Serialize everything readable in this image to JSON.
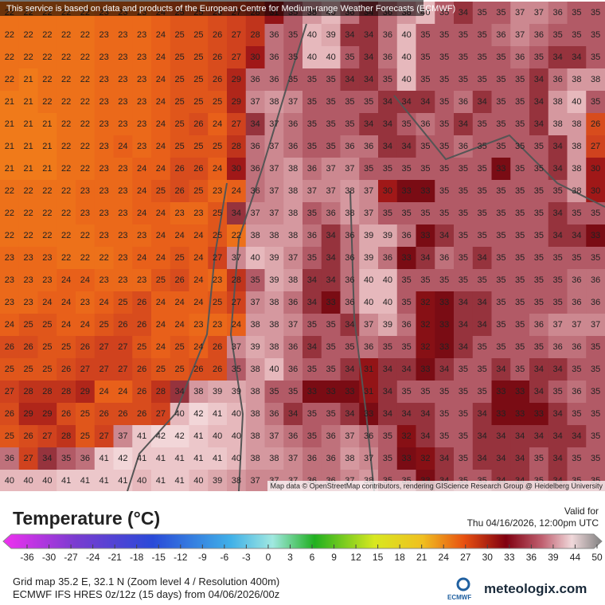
{
  "header": {
    "notice": "This service is based on data and products of the European Centre for Medium-range Weather Forecasts (ECMWF)"
  },
  "map": {
    "attribution": "Map data © OpenStreetMap contributors, rendering GIScience Research Group @ Heidelberg University",
    "grid": [
      [
        22,
        22,
        22,
        22,
        22,
        23,
        23,
        23,
        24,
        25,
        25,
        26,
        27,
        28,
        31,
        35,
        38,
        40,
        36,
        34,
        36,
        38,
        40,
        35,
        34,
        35,
        35,
        37,
        37,
        36,
        35,
        35
      ],
      [
        22,
        22,
        22,
        22,
        22,
        23,
        23,
        23,
        24,
        25,
        25,
        26,
        27,
        28,
        36,
        35,
        40,
        39,
        34,
        34,
        36,
        40,
        35,
        35,
        35,
        35,
        36,
        37,
        36,
        35,
        35,
        35
      ],
      [
        22,
        22,
        22,
        22,
        22,
        23,
        23,
        23,
        24,
        25,
        25,
        26,
        27,
        30,
        36,
        35,
        40,
        40,
        35,
        34,
        36,
        40,
        35,
        35,
        35,
        35,
        35,
        36,
        35,
        34,
        34,
        35
      ],
      [
        22,
        21,
        22,
        22,
        22,
        23,
        23,
        23,
        24,
        25,
        25,
        26,
        29,
        36,
        36,
        35,
        35,
        35,
        34,
        34,
        35,
        40,
        35,
        35,
        35,
        35,
        35,
        35,
        34,
        36,
        38,
        38
      ],
      [
        21,
        21,
        22,
        22,
        22,
        23,
        23,
        23,
        24,
        25,
        25,
        25,
        29,
        37,
        38,
        37,
        35,
        35,
        35,
        35,
        34,
        34,
        34,
        35,
        36,
        34,
        35,
        35,
        34,
        38,
        40,
        35
      ],
      [
        21,
        21,
        21,
        22,
        22,
        23,
        23,
        23,
        24,
        25,
        26,
        24,
        27,
        34,
        37,
        36,
        35,
        35,
        35,
        34,
        34,
        35,
        36,
        35,
        34,
        35,
        35,
        35,
        34,
        38,
        38,
        26
      ],
      [
        21,
        21,
        21,
        22,
        22,
        23,
        24,
        23,
        24,
        25,
        25,
        25,
        28,
        36,
        37,
        36,
        35,
        35,
        36,
        36,
        34,
        34,
        35,
        35,
        36,
        35,
        35,
        35,
        35,
        34,
        38,
        27
      ],
      [
        21,
        21,
        21,
        22,
        22,
        23,
        23,
        24,
        24,
        26,
        26,
        24,
        30,
        36,
        37,
        38,
        36,
        37,
        37,
        35,
        35,
        35,
        35,
        35,
        35,
        35,
        33,
        35,
        35,
        34,
        38,
        30
      ],
      [
        22,
        22,
        22,
        22,
        23,
        23,
        23,
        24,
        25,
        26,
        25,
        23,
        24,
        36,
        37,
        38,
        37,
        37,
        38,
        37,
        30,
        33,
        33,
        35,
        35,
        35,
        35,
        35,
        35,
        35,
        38,
        30
      ],
      [
        22,
        22,
        22,
        22,
        23,
        23,
        23,
        24,
        24,
        23,
        23,
        25,
        34,
        37,
        37,
        38,
        35,
        36,
        38,
        37,
        35,
        35,
        35,
        35,
        35,
        35,
        35,
        35,
        35,
        34,
        35,
        35
      ],
      [
        22,
        22,
        22,
        22,
        22,
        23,
        23,
        23,
        24,
        24,
        24,
        25,
        22,
        38,
        38,
        38,
        36,
        34,
        36,
        39,
        39,
        36,
        33,
        34,
        35,
        35,
        35,
        35,
        35,
        34,
        34,
        33
      ],
      [
        23,
        23,
        23,
        22,
        22,
        22,
        23,
        24,
        24,
        25,
        24,
        27,
        37,
        40,
        39,
        37,
        35,
        34,
        36,
        39,
        36,
        33,
        34,
        36,
        35,
        34,
        35,
        35,
        35,
        35,
        35,
        35
      ],
      [
        23,
        23,
        23,
        24,
        24,
        23,
        23,
        23,
        25,
        26,
        24,
        23,
        28,
        35,
        39,
        38,
        34,
        34,
        36,
        40,
        40,
        35,
        35,
        35,
        35,
        35,
        35,
        35,
        35,
        35,
        36,
        36
      ],
      [
        23,
        23,
        24,
        24,
        23,
        24,
        25,
        26,
        24,
        24,
        24,
        25,
        27,
        37,
        38,
        36,
        34,
        33,
        36,
        40,
        40,
        35,
        32,
        33,
        34,
        34,
        35,
        35,
        35,
        35,
        36,
        36
      ],
      [
        24,
        25,
        25,
        24,
        24,
        25,
        26,
        26,
        24,
        24,
        23,
        23,
        24,
        38,
        38,
        37,
        35,
        35,
        34,
        37,
        39,
        36,
        32,
        33,
        34,
        34,
        35,
        35,
        36,
        37,
        37,
        37
      ],
      [
        26,
        26,
        25,
        25,
        26,
        27,
        27,
        25,
        24,
        25,
        24,
        26,
        37,
        39,
        38,
        36,
        34,
        35,
        35,
        36,
        35,
        35,
        32,
        33,
        34,
        35,
        35,
        35,
        35,
        36,
        36,
        35
      ],
      [
        25,
        25,
        25,
        26,
        27,
        27,
        27,
        26,
        25,
        25,
        26,
        26,
        35,
        38,
        40,
        36,
        35,
        35,
        34,
        31,
        34,
        34,
        33,
        34,
        35,
        35,
        34,
        35,
        34,
        34,
        35,
        35
      ],
      [
        27,
        28,
        28,
        28,
        29,
        24,
        24,
        26,
        28,
        34,
        38,
        39,
        39,
        38,
        35,
        35,
        33,
        33,
        33,
        31,
        34,
        35,
        35,
        35,
        35,
        35,
        33,
        33,
        34,
        35,
        36,
        35
      ],
      [
        26,
        29,
        29,
        26,
        25,
        26,
        26,
        26,
        27,
        40,
        42,
        41,
        40,
        38,
        36,
        34,
        35,
        35,
        34,
        33,
        34,
        34,
        34,
        35,
        35,
        34,
        33,
        33,
        33,
        34,
        35,
        35
      ],
      [
        25,
        26,
        27,
        28,
        25,
        27,
        37,
        41,
        42,
        42,
        41,
        40,
        40,
        38,
        37,
        36,
        35,
        36,
        37,
        36,
        35,
        32,
        34,
        35,
        35,
        34,
        34,
        34,
        34,
        34,
        34,
        35
      ],
      [
        36,
        27,
        34,
        35,
        36,
        41,
        42,
        41,
        41,
        41,
        41,
        41,
        40,
        38,
        38,
        37,
        36,
        36,
        38,
        37,
        35,
        33,
        32,
        34,
        35,
        34,
        34,
        34,
        35,
        34,
        35,
        35
      ],
      [
        40,
        40,
        40,
        41,
        41,
        41,
        41,
        40,
        41,
        41,
        40,
        39,
        38,
        37,
        37,
        37,
        36,
        36,
        37,
        38,
        35,
        35,
        33,
        34,
        35,
        35,
        34,
        34,
        35,
        34,
        35,
        35
      ]
    ]
  },
  "legend": {
    "title": "Temperature (°C)",
    "ticks": [
      -36,
      -30,
      -27,
      -24,
      -21,
      -18,
      -15,
      -12,
      -9,
      -6,
      -3,
      0,
      3,
      6,
      9,
      12,
      15,
      18,
      21,
      24,
      27,
      30,
      33,
      36,
      39,
      44,
      50
    ]
  },
  "valid": {
    "label": "Valid for",
    "time": "Thu 04/16/2026, 12:00pm UTC"
  },
  "footer": {
    "location": "Grid map 35.2 E, 32.1 N (Zoom level 4 / Resolution 400m)",
    "model": "ECMWF IFS HRES 0z/12z (15 days) from 04/06/2026/00z",
    "ecmwf": "ECMWF",
    "brand": "meteologix.com"
  }
}
